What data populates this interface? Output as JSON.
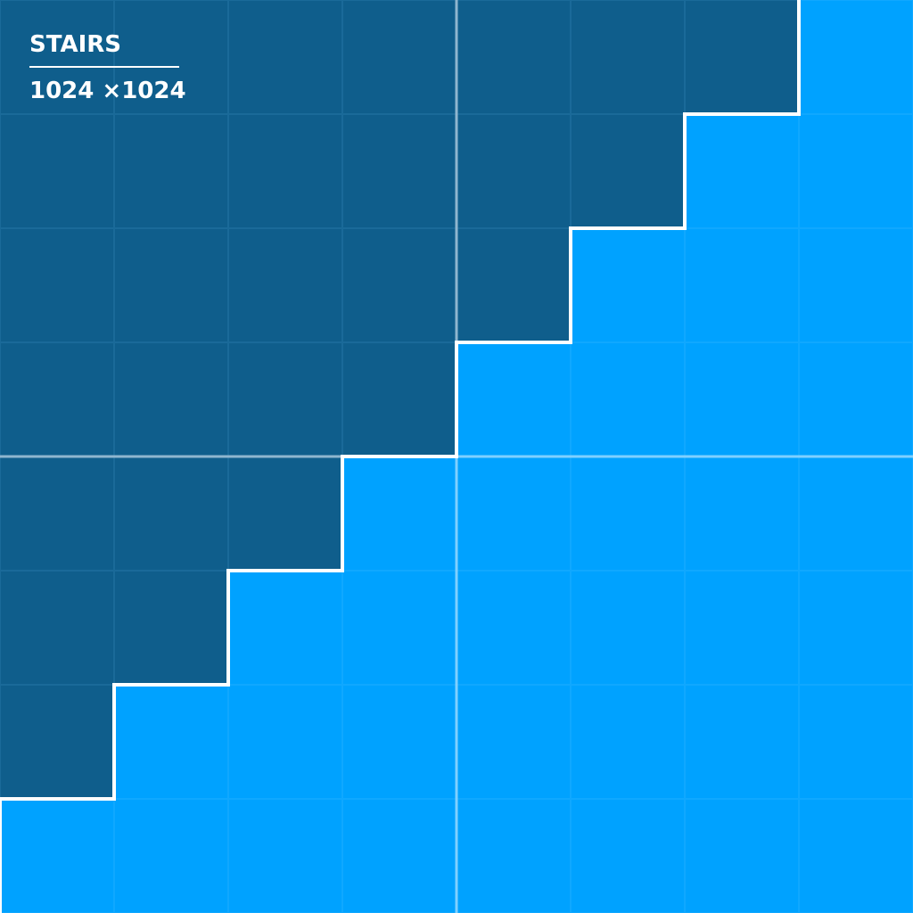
{
  "title": "STAIRS",
  "size_label": "1024 ×1024",
  "colors": {
    "dark": "#0f5e8c",
    "light": "#00a2ff",
    "step_line": "#ffffff",
    "grid_line_dark": "#1a6a99",
    "grid_line_light": "#10a8ff",
    "center_line_dark": "#8fb6cf",
    "center_line_light": "#7fd0ff"
  },
  "grid": {
    "columns": 8,
    "rows": 8
  },
  "stairs": {
    "dark_cells_per_row": [
      7,
      6,
      5,
      4,
      3,
      2,
      1,
      0
    ]
  }
}
